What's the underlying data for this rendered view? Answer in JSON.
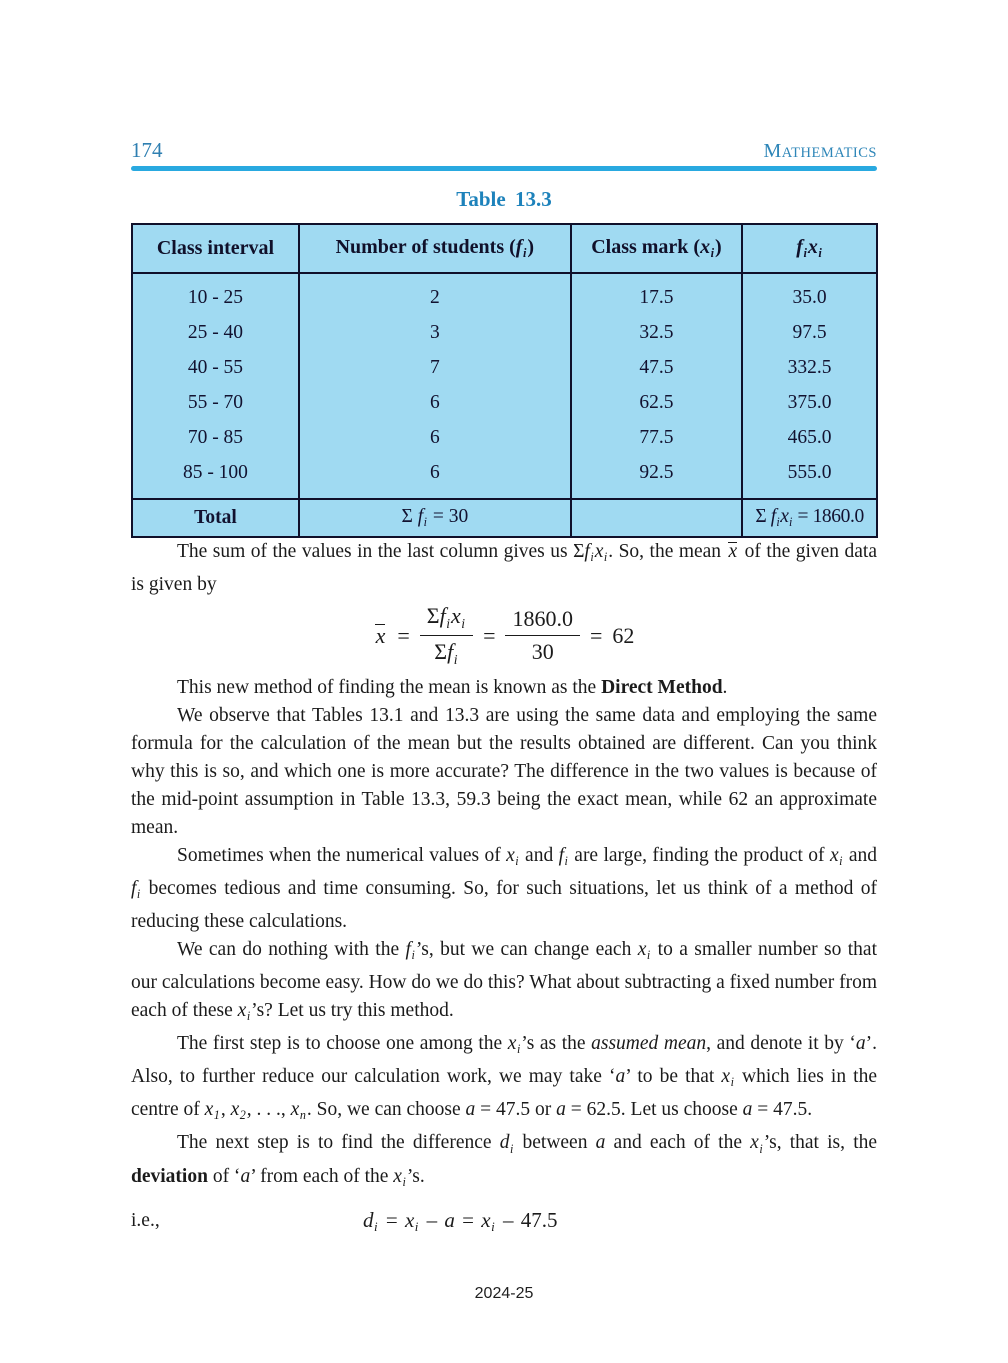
{
  "colors": {
    "accent_title": "#1d82bb",
    "running_head": "#2e86b8",
    "header_rule": "#29a9e0",
    "table_cell_fill": "#a0daf2",
    "table_border": "#10102a"
  },
  "header": {
    "page_number": "174",
    "subject_initial": "M",
    "subject_rest": "ATHEMATICS"
  },
  "table_title": "Table 13.3",
  "table": {
    "header_runs": [
      [
        {
          "t": "Class interval"
        }
      ],
      [
        {
          "t": "Number of students ("
        },
        {
          "t": "f",
          "s": "bi"
        },
        {
          "t": "i",
          "s": "sub"
        },
        {
          "t": ")"
        }
      ],
      [
        {
          "t": "Class mark ("
        },
        {
          "t": "x",
          "s": "bi"
        },
        {
          "t": "i",
          "s": "sub"
        },
        {
          "t": ")"
        }
      ],
      [
        {
          "t": "f",
          "s": "i"
        },
        {
          "t": "i",
          "s": "sub"
        },
        {
          "t": "x",
          "s": "i"
        },
        {
          "t": "i",
          "s": "sub"
        }
      ]
    ],
    "rows": [
      [
        "10 - 25",
        "2",
        "17.5",
        "35.0"
      ],
      [
        "25 - 40",
        "3",
        "32.5",
        "97.5"
      ],
      [
        "40 - 55",
        "7",
        "47.5",
        "332.5"
      ],
      [
        "55 - 70",
        "6",
        "62.5",
        "375.0"
      ],
      [
        "70 - 85",
        "6",
        "77.5",
        "465.0"
      ],
      [
        "85 - 100",
        "6",
        "92.5",
        "555.0"
      ]
    ],
    "total_row": {
      "cells": [
        [
          {
            "t": "Total",
            "s": "b"
          }
        ],
        [
          {
            "t": "Σ "
          },
          {
            "t": "f",
            "s": "i"
          },
          {
            "t": "i",
            "s": "sub"
          },
          {
            "t": " = 30"
          }
        ],
        [],
        [
          {
            "t": "Σ "
          },
          {
            "t": "f",
            "s": "i"
          },
          {
            "t": "i",
            "s": "sub"
          },
          {
            "t": "x",
            "s": "i"
          },
          {
            "t": "i",
            "s": "sub"
          },
          {
            "t": " = 1860.0"
          }
        ]
      ]
    }
  },
  "paragraphs": {
    "p1": {
      "runs": [
        {
          "t": "The sum of the values in the last column gives us "
        },
        {
          "t": "Σ"
        },
        {
          "t": "f",
          "s": "i"
        },
        {
          "t": "i",
          "s": "sub"
        },
        {
          "t": "x",
          "s": "i"
        },
        {
          "t": "i",
          "s": "sub"
        },
        {
          "t": ". So, the mean "
        },
        {
          "t": "x",
          "s": "ol"
        },
        {
          "t": " of the given data is given by"
        }
      ]
    },
    "p2": {
      "runs": [
        {
          "t": "This new method of finding the mean is known as the "
        },
        {
          "t": "Direct Method",
          "s": "b"
        },
        {
          "t": "."
        }
      ]
    },
    "p3": {
      "runs": [
        {
          "t": "We observe that Tables 13.1 and 13.3 are using the same data and employing the same formula for the calculation of the mean but the results obtained are different. Can you think why this is so, and which one is more accurate? The difference in the two values is because of the mid-point assumption in Table 13.3, 59.3 being the exact mean, while 62 an approximate mean."
        }
      ]
    },
    "p4": {
      "runs": [
        {
          "t": "Sometimes when the numerical values of "
        },
        {
          "t": "x",
          "s": "i"
        },
        {
          "t": "i",
          "s": "sub"
        },
        {
          "t": " and "
        },
        {
          "t": "f",
          "s": "i"
        },
        {
          "t": "i",
          "s": "sub"
        },
        {
          "t": " are large, finding the product of "
        },
        {
          "t": "x",
          "s": "i"
        },
        {
          "t": "i",
          "s": "sub"
        },
        {
          "t": " and "
        },
        {
          "t": "f",
          "s": "i"
        },
        {
          "t": "i",
          "s": "sub"
        },
        {
          "t": " becomes tedious and time consuming. So, for such situations, let us think of a method of reducing these calculations."
        }
      ]
    },
    "p5": {
      "runs": [
        {
          "t": "We can do nothing with the "
        },
        {
          "t": "f",
          "s": "i"
        },
        {
          "t": "i",
          "s": "sub"
        },
        {
          "t": "’s, but we can change each "
        },
        {
          "t": "x",
          "s": "i"
        },
        {
          "t": "i",
          "s": "sub"
        },
        {
          "t": " to a smaller number so that our calculations become easy. How do we do this? What about subtracting a fixed number from each of these "
        },
        {
          "t": "x",
          "s": "i"
        },
        {
          "t": "i",
          "s": "sub"
        },
        {
          "t": "’s? Let us try this method."
        }
      ]
    },
    "p6": {
      "runs": [
        {
          "t": "The first step is to choose one among the "
        },
        {
          "t": "x",
          "s": "i"
        },
        {
          "t": "i",
          "s": "sub"
        },
        {
          "t": "’s as the "
        },
        {
          "t": "assumed mean",
          "s": "i"
        },
        {
          "t": ", and denote it by ‘"
        },
        {
          "t": "a",
          "s": "i"
        },
        {
          "t": "’. Also, to further reduce our calculation work, we may take ‘"
        },
        {
          "t": "a",
          "s": "i"
        },
        {
          "t": "’ to be that "
        },
        {
          "t": "x",
          "s": "i"
        },
        {
          "t": "i",
          "s": "sub"
        },
        {
          "t": " which lies in the centre of "
        },
        {
          "t": "x",
          "s": "i"
        },
        {
          "t": "1",
          "s": "sub"
        },
        {
          "t": ", "
        },
        {
          "t": "x",
          "s": "i"
        },
        {
          "t": "2",
          "s": "sub"
        },
        {
          "t": ", . . ., "
        },
        {
          "t": "x",
          "s": "i"
        },
        {
          "t": "n",
          "s": "sub"
        },
        {
          "t": ". So, we can choose "
        },
        {
          "t": "a",
          "s": "i"
        },
        {
          "t": " = 47.5 or "
        },
        {
          "t": "a",
          "s": "i"
        },
        {
          "t": " = 62.5. Let us choose "
        },
        {
          "t": "a",
          "s": "i"
        },
        {
          "t": " = 47.5."
        }
      ]
    },
    "p7": {
      "runs": [
        {
          "t": "The next step is to find the difference "
        },
        {
          "t": "d",
          "s": "i"
        },
        {
          "t": "i",
          "s": "sub"
        },
        {
          "t": " between "
        },
        {
          "t": "a",
          "s": "i"
        },
        {
          "t": " and each of the "
        },
        {
          "t": "x",
          "s": "i"
        },
        {
          "t": "i",
          "s": "sub"
        },
        {
          "t": "’s, that is, the "
        },
        {
          "t": "deviation",
          "s": "b"
        },
        {
          "t": " of ‘"
        },
        {
          "t": "a",
          "s": "i"
        },
        {
          "t": "’ from each of the "
        },
        {
          "t": "x",
          "s": "i"
        },
        {
          "t": "i",
          "s": "sub"
        },
        {
          "t": "’s."
        }
      ]
    }
  },
  "mean_formula": {
    "lhs": [
      {
        "t": "x",
        "s": "ol"
      }
    ],
    "eq1": "=",
    "frac1_num": [
      {
        "t": "Σ"
      },
      {
        "t": "f",
        "s": "i"
      },
      {
        "t": "i",
        "s": "sub"
      },
      {
        "t": "x",
        "s": "i"
      },
      {
        "t": "i",
        "s": "sub"
      }
    ],
    "frac1_den": [
      {
        "t": "Σ"
      },
      {
        "t": "f",
        "s": "i"
      },
      {
        "t": "i",
        "s": "sub"
      }
    ],
    "eq2": "=",
    "frac2_num": "1860.0",
    "frac2_den": "30",
    "eq3": "=",
    "result": "62"
  },
  "deviation": {
    "label": "i.e.,",
    "runs": [
      {
        "t": "d",
        "s": "i"
      },
      {
        "t": "i",
        "s": "sub"
      },
      {
        "t": " = "
      },
      {
        "t": "x",
        "s": "i"
      },
      {
        "t": "i",
        "s": "sub"
      },
      {
        "t": " – "
      },
      {
        "t": "a",
        "s": "i"
      },
      {
        "t": " = "
      },
      {
        "t": "x",
        "s": "i"
      },
      {
        "t": "i",
        "s": "sub"
      },
      {
        "t": " – 47.5"
      }
    ]
  },
  "footer": {
    "session": "2024-25"
  }
}
